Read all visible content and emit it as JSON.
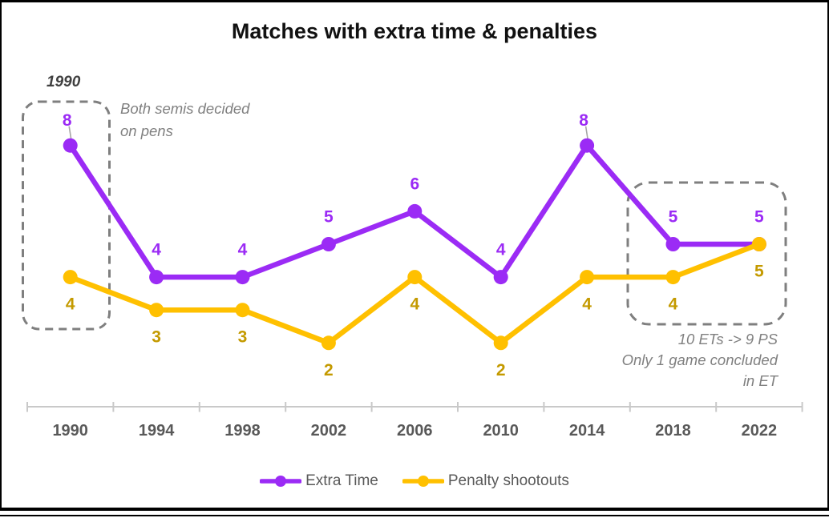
{
  "title": "Matches with extra time & penalties",
  "annotations": {
    "year_callout": "1990",
    "semis_note_line1": "Both semis decided",
    "semis_note_line2": "on pens",
    "ets_note_line1": "10 ETs -> 9 PS",
    "ets_note_line2": "Only 1 game concluded",
    "ets_note_line3": "in ET"
  },
  "legend": [
    {
      "label": "Extra Time",
      "color": "#9B2BF5"
    },
    {
      "label": "Penalty shootouts",
      "color": "#FFC000"
    }
  ],
  "colors": {
    "extra_time_line": "#9B2BF5",
    "extra_time_label": "#9B2BF5",
    "penalty_line": "#FFC000",
    "penalty_label": "#C49A00",
    "axis": "#C9C9C9",
    "axis_text": "#595959",
    "annotation_gray": "#808080",
    "dashed_box": "#7F7F7F",
    "leader_line": "#A6A6A6"
  },
  "chart_data": {
    "type": "line",
    "title": "Matches with extra time & penalties",
    "categories": [
      "1990",
      "1994",
      "1998",
      "2002",
      "2006",
      "2010",
      "2014",
      "2018",
      "2022"
    ],
    "series": [
      {
        "name": "Extra Time",
        "color": "#9B2BF5",
        "label_color": "#9B2BF5",
        "label_position": "above",
        "callout_indices": [
          0,
          6
        ],
        "values": [
          8,
          4,
          4,
          5,
          6,
          4,
          8,
          5,
          5
        ]
      },
      {
        "name": "Penalty shootouts",
        "color": "#FFC000",
        "label_color": "#C49A00",
        "label_position": "below",
        "callout_indices": [],
        "values": [
          4,
          3,
          3,
          2,
          4,
          2,
          4,
          4,
          5
        ]
      }
    ],
    "xlabel": "",
    "ylabel": "",
    "ylim": [
      0,
      9
    ],
    "grid": false,
    "y_axis_shown": false,
    "legend_position": "bottom",
    "highlight_boxes": [
      "1990",
      "2018-2022"
    ]
  }
}
